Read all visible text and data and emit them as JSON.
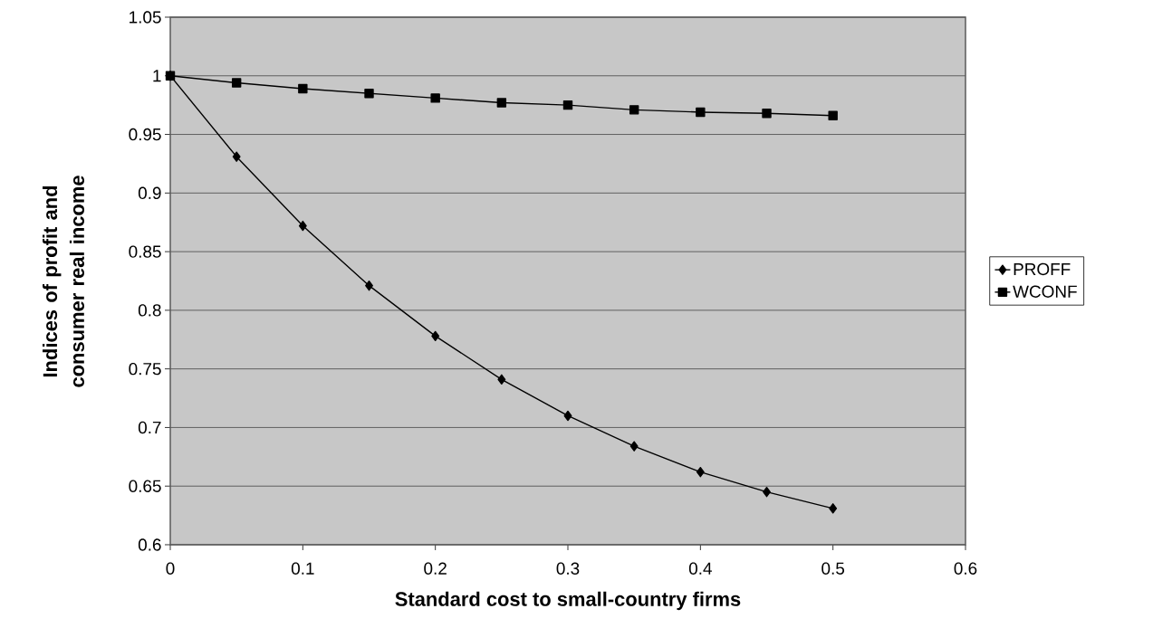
{
  "chart_data": {
    "type": "line",
    "xlabel": "Standard cost to small-country firms",
    "ylabel": "Indices of profit and consumer real income",
    "x": [
      0,
      0.05,
      0.1,
      0.15,
      0.2,
      0.25,
      0.3,
      0.35,
      0.4,
      0.45,
      0.5
    ],
    "series": [
      {
        "name": "PROFF",
        "color": "#000000",
        "marker": "diamond",
        "values": [
          1,
          0.931,
          0.872,
          0.821,
          0.778,
          0.741,
          0.71,
          0.684,
          0.662,
          0.645,
          0.631
        ]
      },
      {
        "name": "WCONF",
        "color": "#000000",
        "marker": "square",
        "values": [
          1,
          0.994,
          0.989,
          0.985,
          0.981,
          0.977,
          0.975,
          0.971,
          0.969,
          0.968,
          0.966
        ]
      }
    ],
    "xlim": [
      0,
      0.6
    ],
    "ylim": [
      0.6,
      1.05
    ],
    "xticks": [
      0,
      0.1,
      0.2,
      0.3,
      0.4,
      0.5,
      0.6
    ],
    "yticks": [
      0.6,
      0.65,
      0.7,
      0.75,
      0.8,
      0.85,
      0.9,
      0.95,
      1,
      1.05
    ],
    "grid": "y",
    "legend": "right",
    "line_style": "solid"
  }
}
